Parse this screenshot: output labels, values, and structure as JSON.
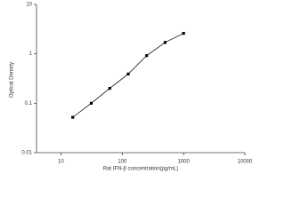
{
  "chart_data": {
    "type": "line",
    "x_label": "Rat IFN-β concentration(pg/mL)",
    "y_label": "Optical Density",
    "x": [
      15.6,
      31.25,
      62.5,
      125,
      250,
      500,
      1000
    ],
    "series": [
      {
        "color": "#000000",
        "values": [
          0.052,
          0.1,
          0.2,
          0.39,
          0.92,
          1.7,
          2.6
        ]
      }
    ],
    "xlim": [
      4,
      10000
    ],
    "ylim": [
      0.01,
      10
    ],
    "xticks": [
      10,
      100,
      1000,
      10000
    ],
    "yticks": [
      10,
      1,
      0.1,
      0.01
    ],
    "xscale": "log",
    "yscale": "log"
  }
}
